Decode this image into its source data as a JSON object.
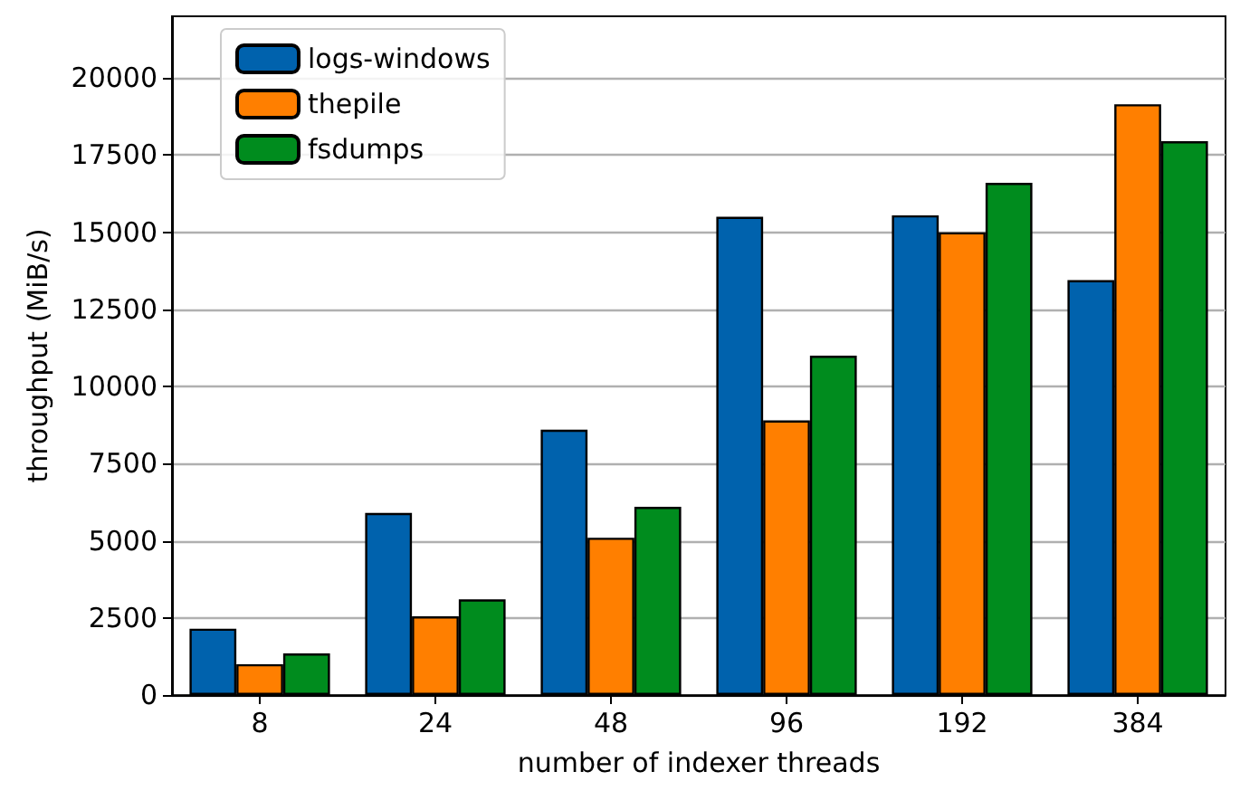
{
  "chart_data": {
    "type": "bar",
    "xlabel": "number of indexer threads",
    "ylabel": "throughput (MiB/s)",
    "categories": [
      "8",
      "24",
      "48",
      "96",
      "192",
      "384"
    ],
    "series": [
      {
        "name": "logs-windows",
        "color": "#0062ad",
        "values": [
          2150,
          5900,
          8600,
          15500,
          15550,
          13450
        ]
      },
      {
        "name": "thepile",
        "color": "#ff7f00",
        "values": [
          1000,
          2550,
          5100,
          8900,
          15000,
          19150
        ]
      },
      {
        "name": "fsdumps",
        "color": "#008c1e",
        "values": [
          1350,
          3100,
          6100,
          11000,
          16600,
          17950
        ]
      }
    ],
    "ylim": [
      0,
      22000
    ],
    "yticks": [
      0,
      2500,
      5000,
      7500,
      10000,
      12500,
      15000,
      17500,
      20000
    ],
    "grid": "y",
    "legend": "top left"
  }
}
